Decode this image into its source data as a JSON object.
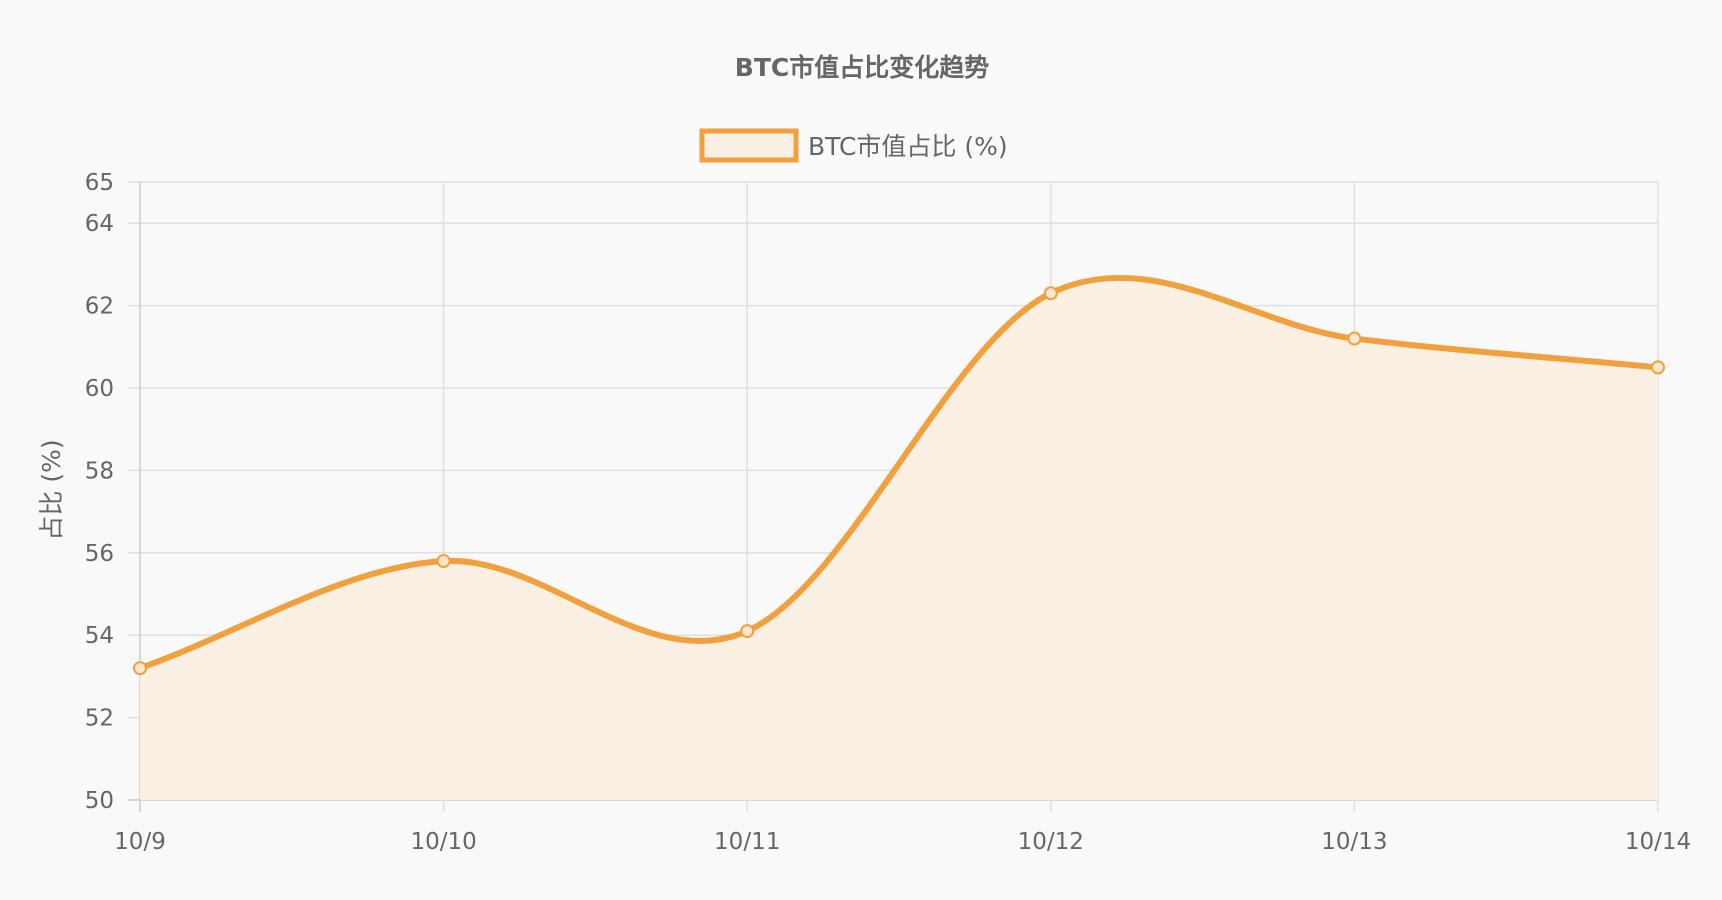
{
  "chart_data": {
    "type": "line",
    "title": "BTC市值占比变化趋势",
    "xlabel": "",
    "ylabel": "占比 (%)",
    "categories": [
      "10/9",
      "10/10",
      "10/11",
      "10/12",
      "10/13",
      "10/14"
    ],
    "series": [
      {
        "name": "BTC市值占比 (%)",
        "values": [
          53.2,
          55.8,
          54.1,
          62.3,
          61.2,
          60.5
        ],
        "color": "#f0a03c",
        "fill": "#f9efe3",
        "smooth": true,
        "area": true
      }
    ],
    "ylim": [
      50,
      65
    ],
    "yticks": [
      50,
      52,
      54,
      56,
      58,
      60,
      62,
      64,
      65
    ],
    "grid": true,
    "legend": "top-center"
  },
  "colors": {
    "background": "#f9f9f9",
    "grid": "#dddddd",
    "axis_text": "#666666",
    "title_text": "#666666"
  }
}
